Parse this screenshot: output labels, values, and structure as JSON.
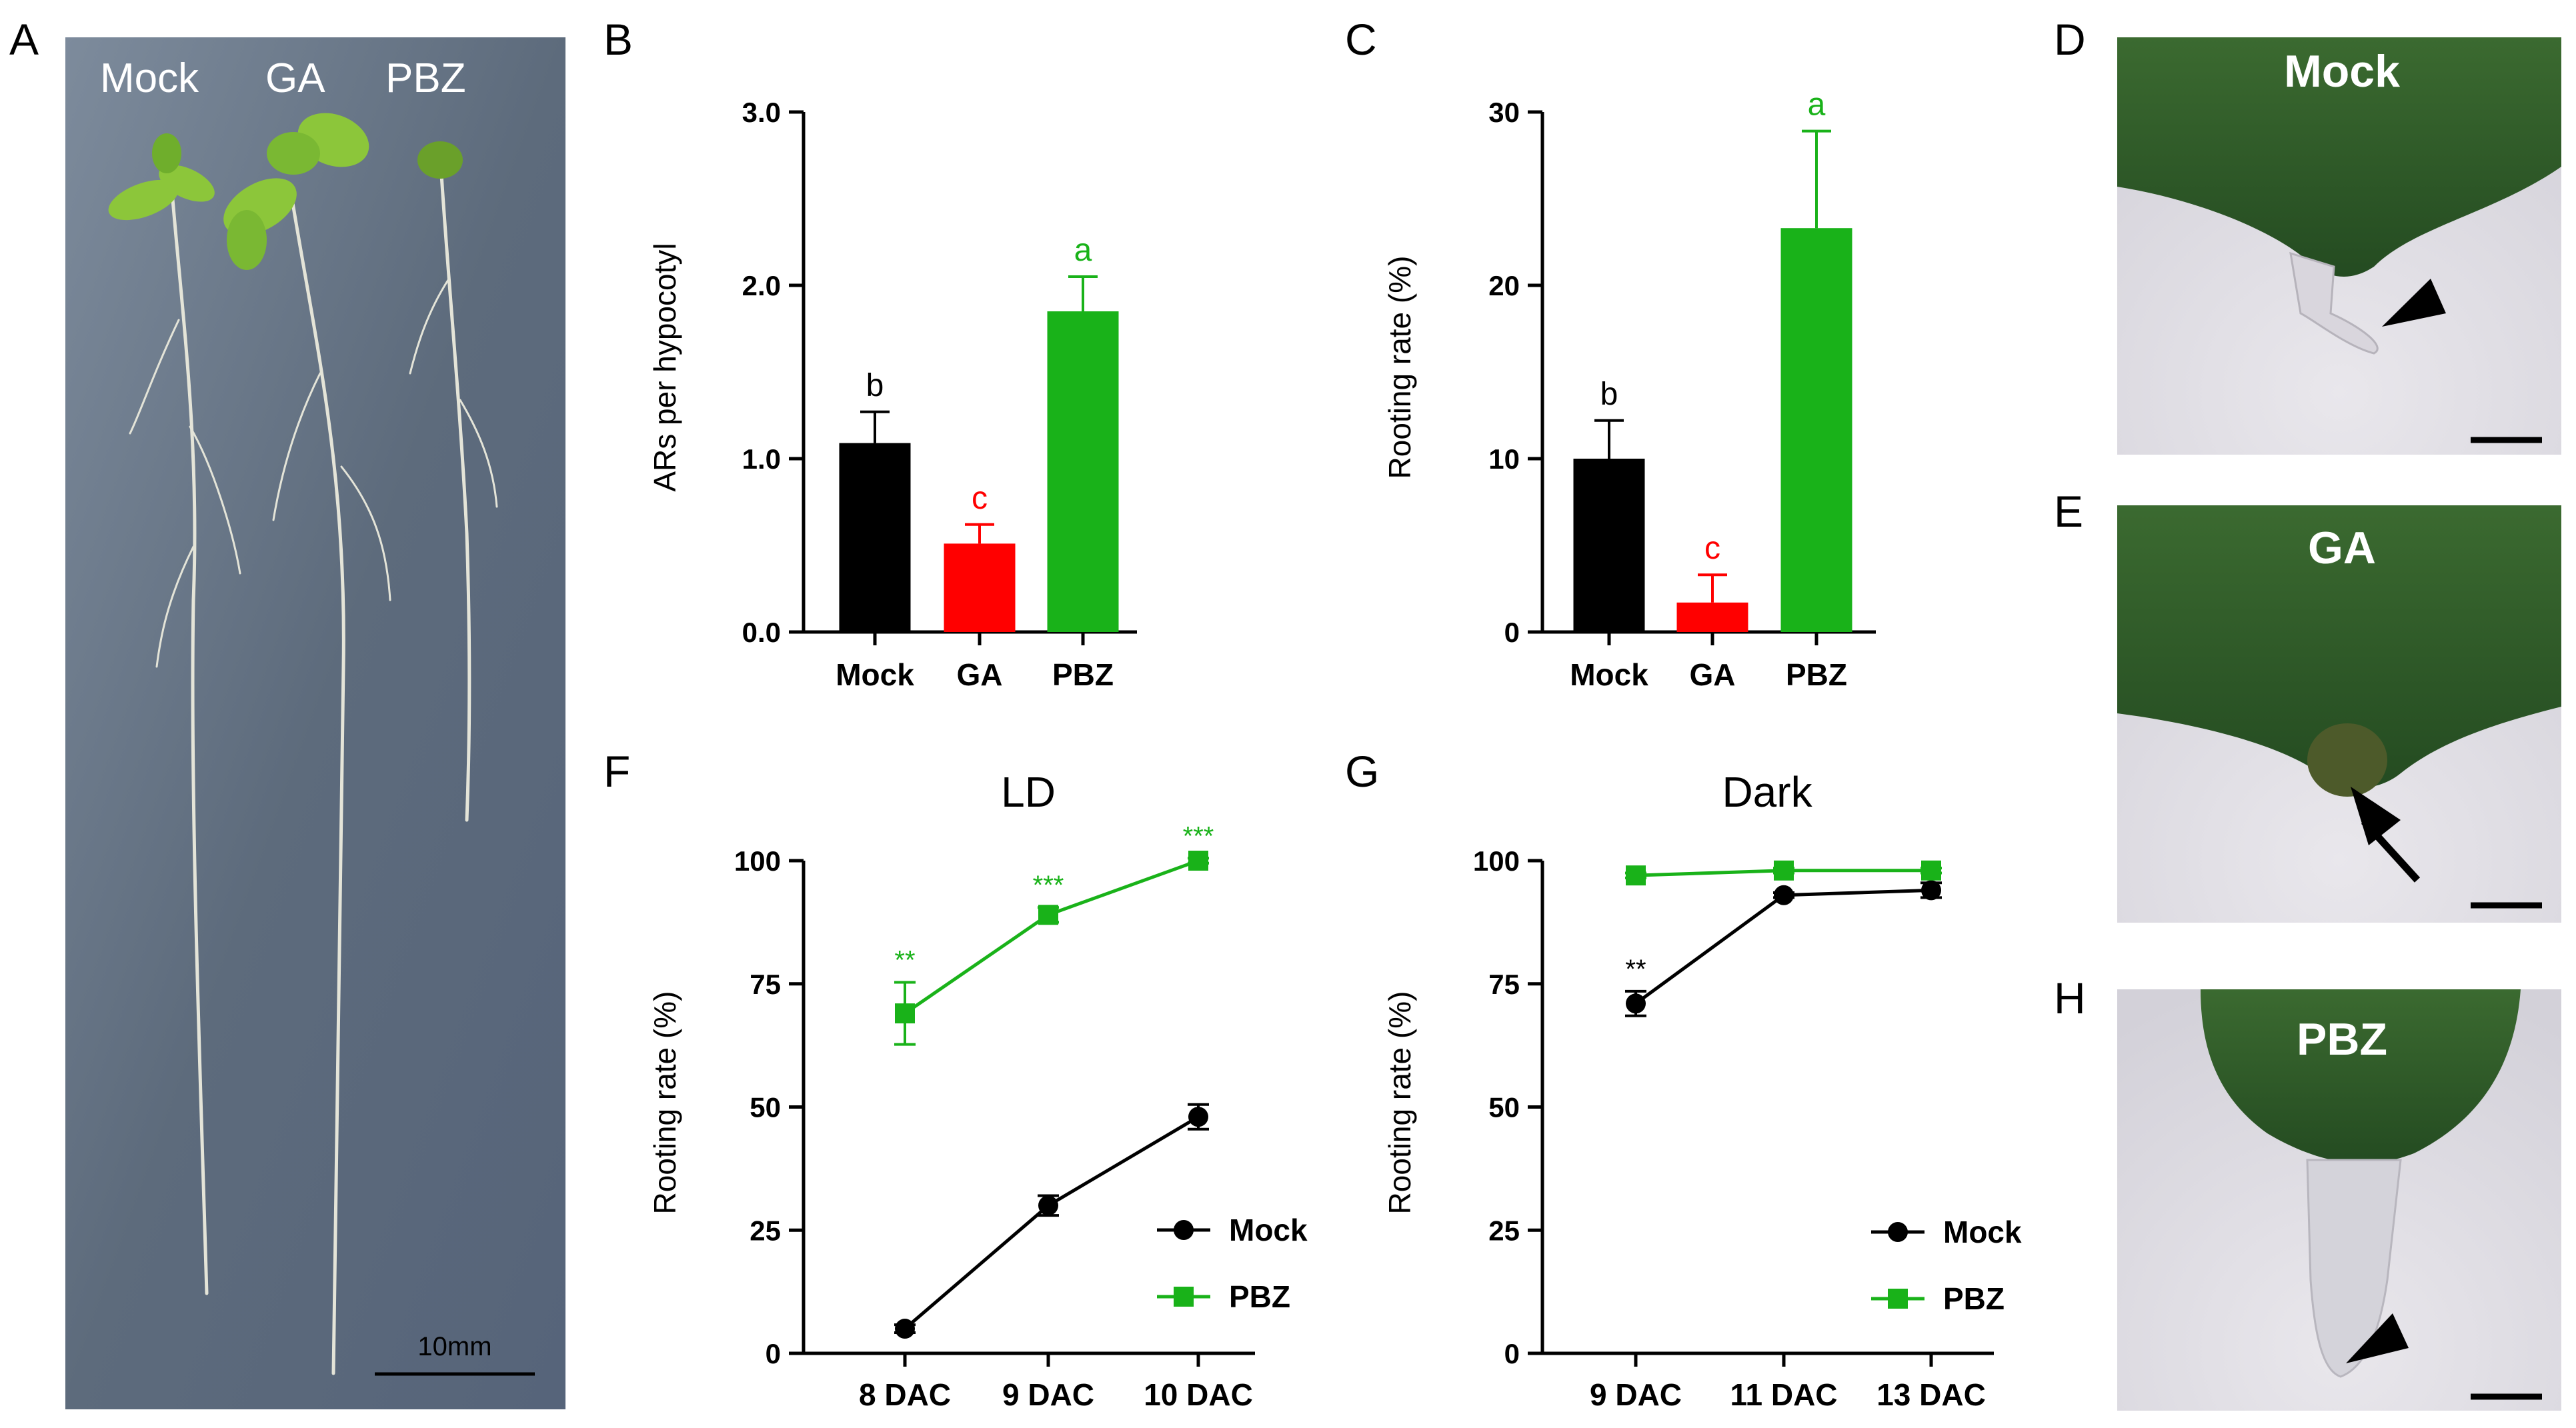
{
  "colors": {
    "mock": "#000000",
    "ga": "#ff0000",
    "pbz": "#19b219"
  },
  "panel_labels": {
    "a": "A",
    "b": "B",
    "c": "C",
    "d": "D",
    "e": "E",
    "f": "F",
    "g": "G",
    "h": "H"
  },
  "photo_a": {
    "labels": [
      "Mock",
      "GA",
      "PBZ"
    ],
    "scale_text": "10mm"
  },
  "photo_d": {
    "label": "Mock",
    "marker": "arrowhead-icon"
  },
  "photo_e": {
    "label": "GA",
    "marker": "arrow-icon"
  },
  "photo_h": {
    "label": "PBZ",
    "marker": "arrowhead-icon"
  },
  "chart_data": [
    {
      "id": "B",
      "type": "bar",
      "categories": [
        "Mock",
        "GA",
        "PBZ"
      ],
      "values": [
        1.09,
        0.51,
        1.85
      ],
      "errors": [
        0.18,
        0.11,
        0.2
      ],
      "letters": [
        "b",
        "c",
        "a"
      ],
      "ylabel": "ARs per hypocotyl",
      "xlabel": "",
      "ylim": [
        0,
        3.0
      ],
      "yticks": [
        0.0,
        1.0,
        2.0,
        3.0
      ],
      "ytick_labels": [
        "0.0",
        "1.0",
        "2.0",
        "3.0"
      ]
    },
    {
      "id": "C",
      "type": "bar",
      "categories": [
        "Mock",
        "GA",
        "PBZ"
      ],
      "values": [
        10,
        1.7,
        23.3
      ],
      "errors": [
        2.2,
        1.6,
        5.6
      ],
      "letters": [
        "b",
        "c",
        "a"
      ],
      "ylabel": "Rooting rate (%)",
      "xlabel": "",
      "ylim": [
        0,
        30
      ],
      "yticks": [
        0,
        10,
        20,
        30
      ],
      "ytick_labels": [
        "0",
        "10",
        "20",
        "30"
      ]
    },
    {
      "id": "F",
      "type": "line",
      "title": "LD",
      "x": [
        "8 DAC",
        "9 DAC",
        "10 DAC"
      ],
      "series": [
        {
          "name": "Mock",
          "values": [
            5,
            30,
            48
          ],
          "errors": [
            0.8,
            2,
            2.5
          ],
          "marker": "circle"
        },
        {
          "name": "PBZ",
          "values": [
            69,
            89,
            100
          ],
          "errors": [
            6.3,
            1.5,
            0.5
          ],
          "marker": "square",
          "significance": [
            "**",
            "***",
            "***"
          ]
        }
      ],
      "ylabel": "Rooting rate (%)",
      "xlabel": "",
      "ylim": [
        0,
        100
      ],
      "yticks": [
        0,
        25,
        50,
        75,
        100
      ],
      "ytick_labels": [
        "0",
        "25",
        "50",
        "75",
        "100"
      ],
      "legend_position": "bottom-right"
    },
    {
      "id": "G",
      "type": "line",
      "title": "Dark",
      "x": [
        "9 DAC",
        "11 DAC",
        "13 DAC"
      ],
      "series": [
        {
          "name": "Mock",
          "values": [
            71,
            93,
            94
          ],
          "errors": [
            2.5,
            0.5,
            1.5
          ],
          "marker": "circle",
          "significance": [
            "**",
            "",
            ""
          ]
        },
        {
          "name": "PBZ",
          "values": [
            97,
            98,
            98
          ],
          "errors": [
            0.5,
            0.5,
            0.5
          ],
          "marker": "square"
        }
      ],
      "ylabel": "Rooting rate (%)",
      "xlabel": "",
      "ylim": [
        0,
        100
      ],
      "yticks": [
        0,
        25,
        50,
        75,
        100
      ],
      "ytick_labels": [
        "0",
        "25",
        "50",
        "75",
        "100"
      ],
      "legend_position": "bottom-right"
    }
  ]
}
